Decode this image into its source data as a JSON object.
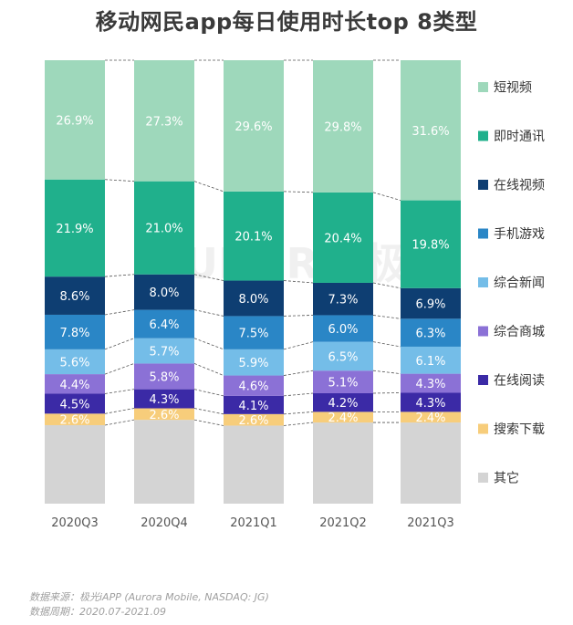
{
  "title": "移动网民app每日使用时长top 8类型",
  "source_lines": [
    "数据来源：极光iAPP (Aurora Mobile, NASDAQ: JG)",
    "数据周期：2020.07-2021.09"
  ],
  "watermark": "AURORA 极光",
  "colors": {
    "background": "#ffffff",
    "dashed_connector": "#555555",
    "axis_label": "#555555"
  },
  "chart_data": {
    "type": "bar",
    "stacked": true,
    "normalized_to_percent": true,
    "categories": [
      "2020Q3",
      "2020Q4",
      "2021Q1",
      "2021Q2",
      "2021Q3"
    ],
    "series": [
      {
        "name": "其它",
        "color": "#d4d4d4",
        "values": [
          null,
          null,
          null,
          null,
          null
        ]
      },
      {
        "name": "搜索下载",
        "color": "#f7cd7b",
        "values": [
          2.6,
          2.6,
          2.6,
          2.4,
          2.4
        ]
      },
      {
        "name": "在线阅读",
        "color": "#3b2aa6",
        "values": [
          4.5,
          4.3,
          4.1,
          4.2,
          4.3
        ]
      },
      {
        "name": "综合商城",
        "color": "#8b71d6",
        "values": [
          4.4,
          5.8,
          4.6,
          5.1,
          4.3
        ]
      },
      {
        "name": "综合新闻",
        "color": "#74bde8",
        "values": [
          5.6,
          5.7,
          5.9,
          6.5,
          6.1
        ]
      },
      {
        "name": "手机游戏",
        "color": "#2a86c6",
        "values": [
          7.8,
          6.4,
          7.5,
          6.0,
          6.3
        ]
      },
      {
        "name": "在线视频",
        "color": "#0e3e72",
        "values": [
          8.6,
          8.0,
          8.0,
          7.3,
          6.9
        ]
      },
      {
        "name": "即时通讯",
        "color": "#20b08c",
        "values": [
          21.9,
          21.0,
          20.1,
          20.4,
          19.8
        ]
      },
      {
        "name": "短视频",
        "color": "#9ed8bb",
        "values": [
          26.9,
          27.3,
          29.6,
          29.8,
          31.6
        ]
      }
    ],
    "value_label_suffix": "%",
    "legend_order": [
      "短视频",
      "即时通讯",
      "在线视频",
      "手机游戏",
      "综合新闻",
      "综合商城",
      "在线阅读",
      "搜索下载",
      "其它"
    ],
    "legend_position": "right",
    "grid": false
  }
}
